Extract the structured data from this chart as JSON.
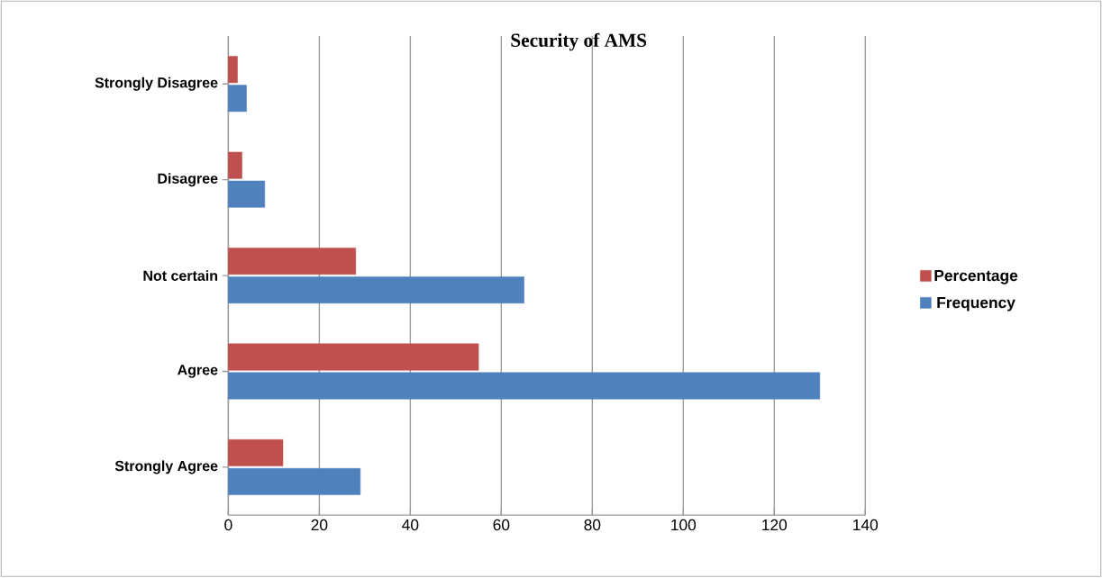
{
  "chart_data": {
    "type": "bar",
    "orientation": "horizontal",
    "title": "Security of AMS",
    "categories": [
      "Strongly Disagree",
      "Disagree",
      "Not certain",
      "Agree",
      "Strongly Agree"
    ],
    "series": [
      {
        "name": "Frequency",
        "color": "#4f81bd",
        "values": [
          4,
          8,
          65,
          130,
          29
        ]
      },
      {
        "name": "Percentage",
        "color": "#c0504d",
        "values": [
          2,
          3,
          28,
          55,
          12
        ]
      }
    ],
    "xlim": [
      0,
      140
    ],
    "xticks": [
      0,
      20,
      40,
      60,
      80,
      100,
      120,
      140
    ],
    "grid": "x",
    "legend": "right"
  }
}
